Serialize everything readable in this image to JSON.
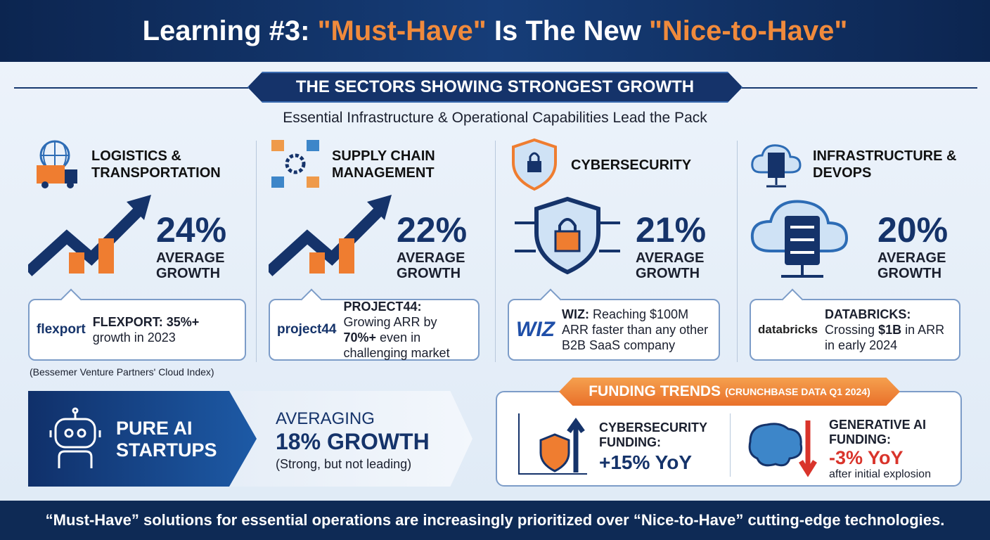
{
  "header": {
    "title": [
      "Learning #3: ",
      "\"Must-Have\"",
      " Is The New ",
      "\"Nice-to-Have\""
    ]
  },
  "banner": "THE SECTORS SHOWING STRONGEST GROWTH",
  "subtitle": "Essential Infrastructure & Operational Capabilities Lead the Pack",
  "sectors": [
    {
      "name": "LOGISTICS & TRANSPORTATION",
      "growth": "24%",
      "growth_label": "AVERAGE GROWTH",
      "logo": "flexport",
      "example": [
        {
          "t": "FLEXPORT: 35%+",
          "b": true
        },
        {
          "t": " growth in 2023",
          "b": false
        }
      ]
    },
    {
      "name": "SUPPLY CHAIN MANAGEMENT",
      "growth": "22%",
      "growth_label": "AVERAGE GROWTH",
      "logo": "project44",
      "example": [
        {
          "t": "PROJECT44:",
          "b": true
        },
        {
          "t": " Growing ARR by ",
          "b": false
        },
        {
          "t": "70%+",
          "b": true
        },
        {
          "t": " even in challenging market",
          "b": false
        }
      ]
    },
    {
      "name": "CYBERSECURITY",
      "growth": "21%",
      "growth_label": "AVERAGE GROWTH",
      "logo": "WIZ",
      "example": [
        {
          "t": "WIZ:",
          "b": true
        },
        {
          "t": " Reaching $100M ARR faster than any other B2B SaaS company",
          "b": false
        }
      ]
    },
    {
      "name": "INFRASTRUCTURE & DEVOPS",
      "growth": "20%",
      "growth_label": "AVERAGE GROWTH",
      "logo": "databricks",
      "example": [
        {
          "t": "DATABRICKS:",
          "b": true
        },
        {
          "t": " Crossing ",
          "b": false
        },
        {
          "t": "$1B",
          "b": true
        },
        {
          "t": " in ARR in early 2024",
          "b": false
        }
      ]
    }
  ],
  "source": "(Bessemer Venture Partners' Cloud Index)",
  "ai": {
    "label": "PURE AI STARTUPS",
    "lead": "AVERAGING",
    "growth": "18% GROWTH",
    "note": "(Strong, but not leading)"
  },
  "funding": {
    "title": "FUNDING TRENDS",
    "source": "(CRUNCHBASE DATA Q1 2024)",
    "items": [
      {
        "label": "CYBERSECURITY FUNDING:",
        "value": "+15% YoY"
      },
      {
        "label": "GENERATIVE AI FUNDING:",
        "value": "-3% YoY",
        "note": "after initial explosion"
      }
    ]
  },
  "footer": "“Must-Have” solutions for essential operations are increasingly prioritized over “Nice-to-Have” cutting-edge technologies."
}
